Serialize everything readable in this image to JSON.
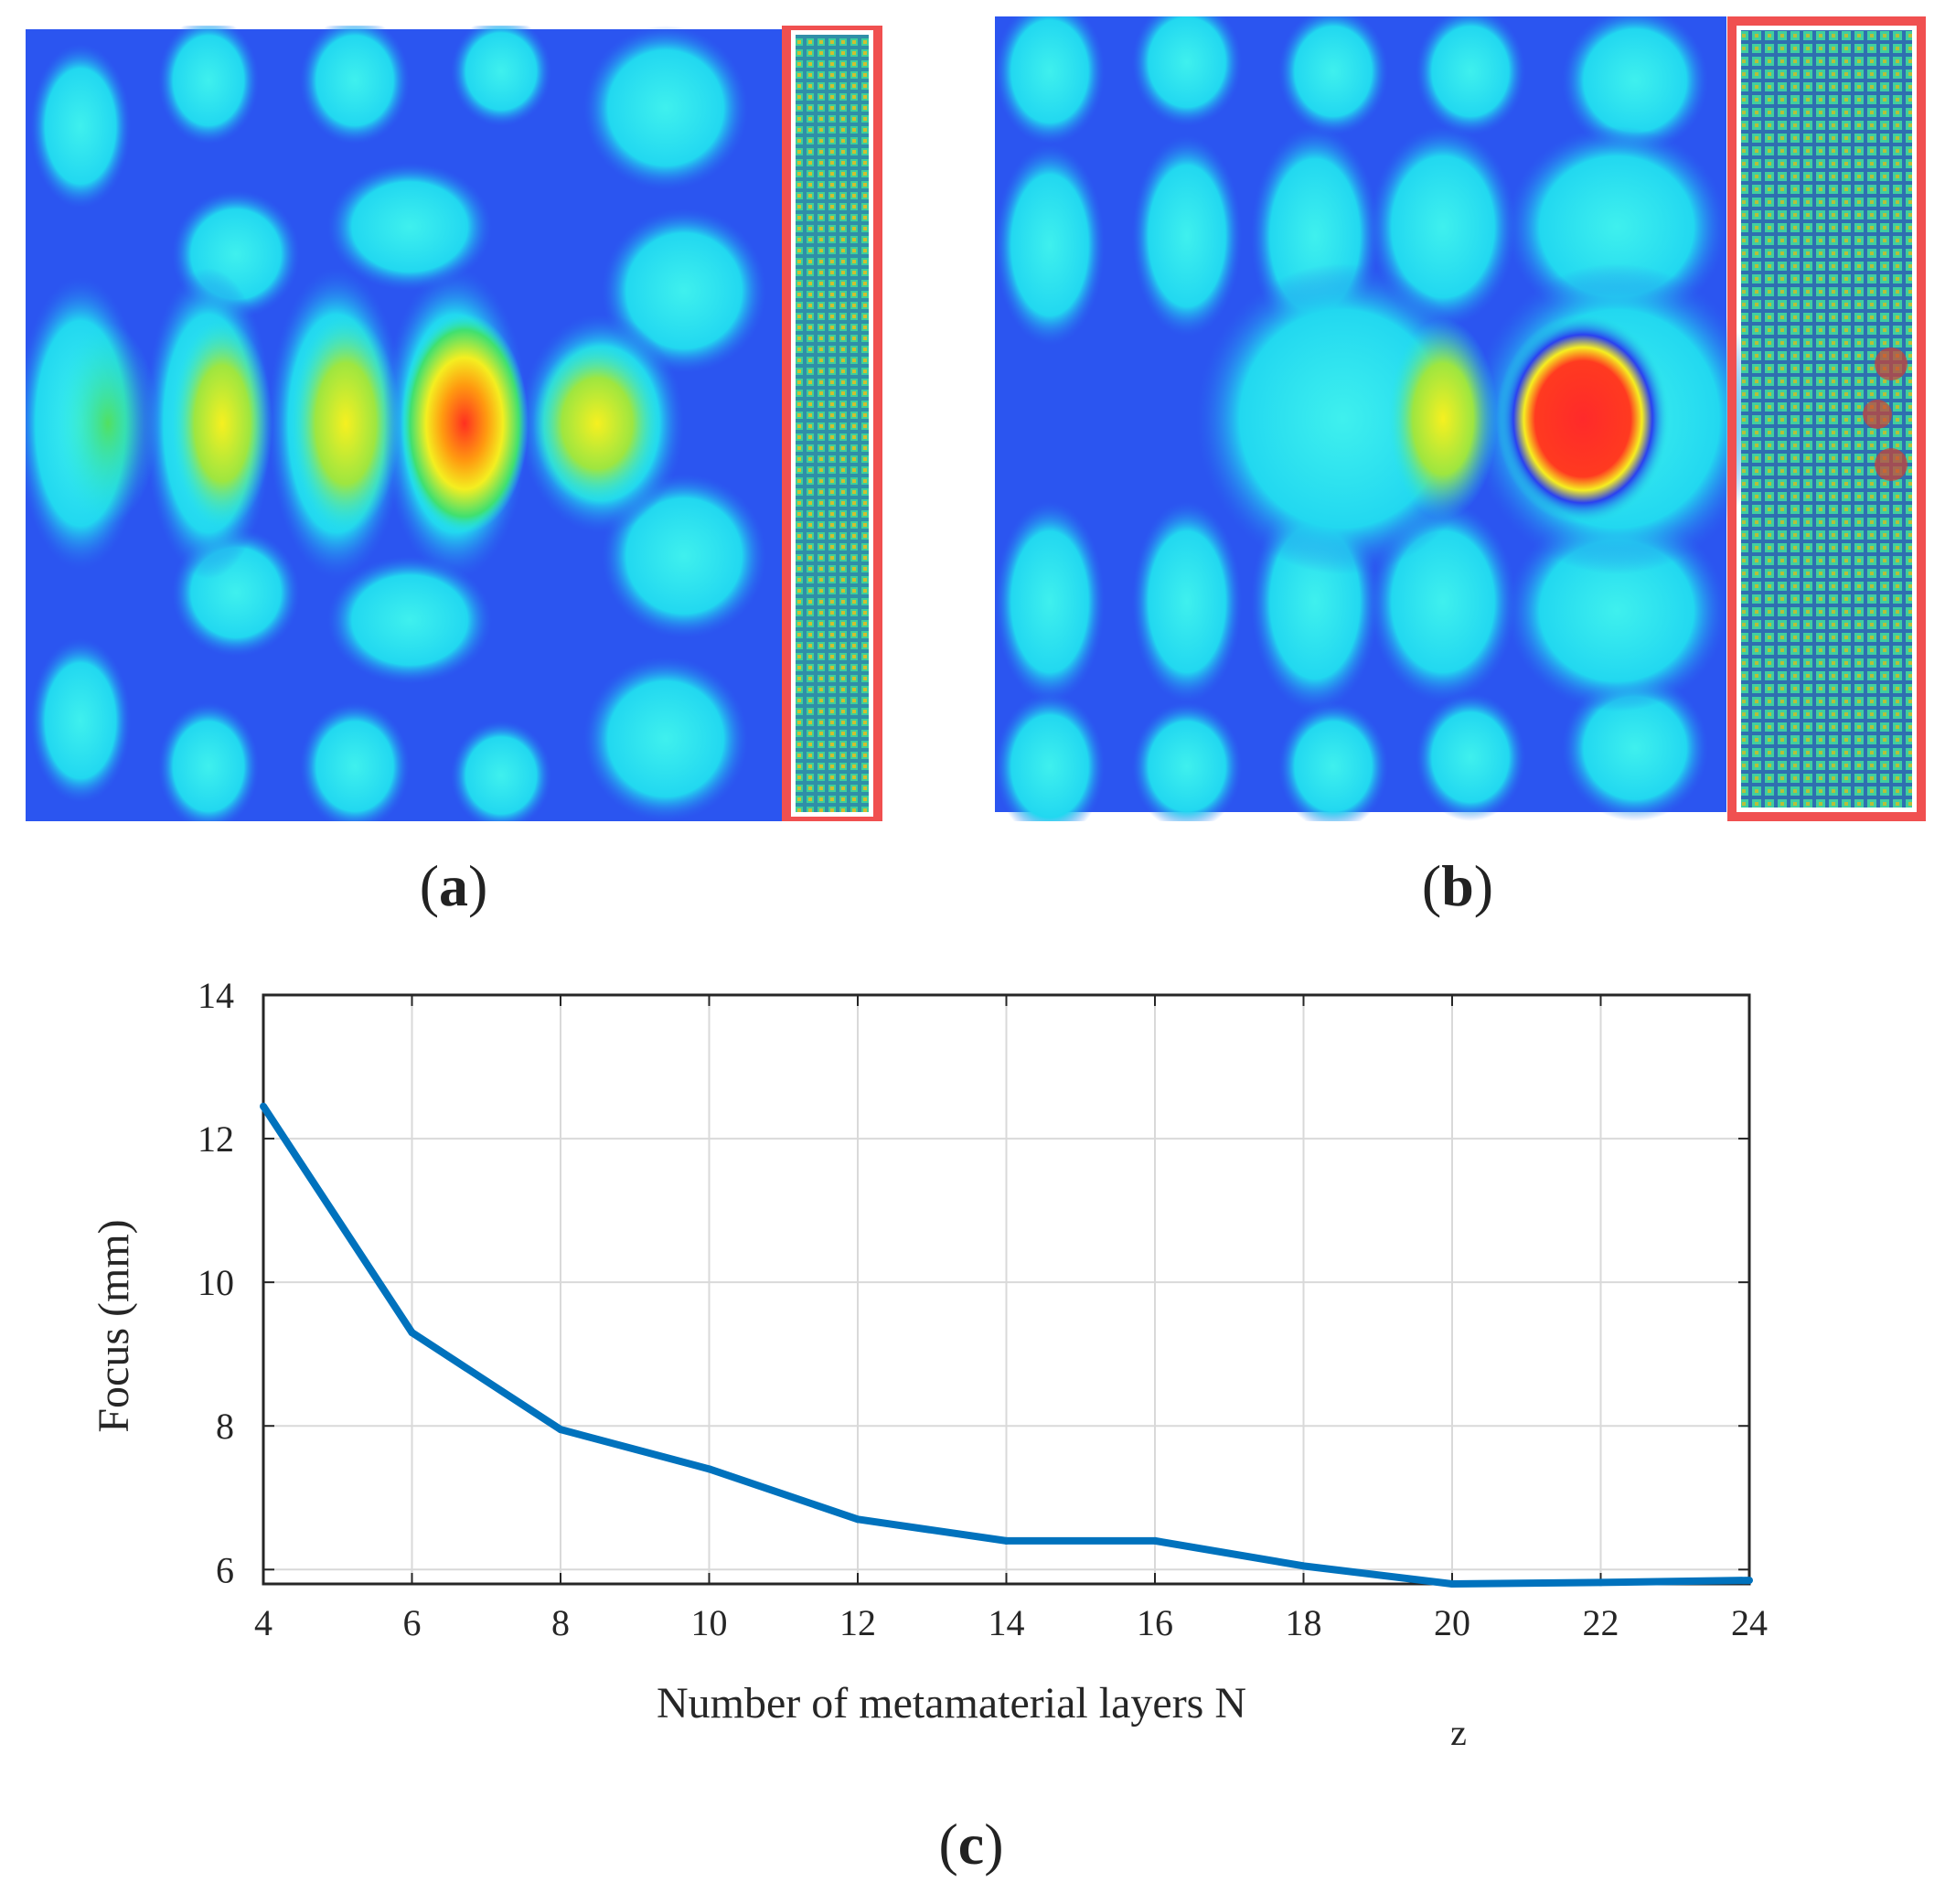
{
  "panels": {
    "a": {
      "label": "a"
    },
    "b": {
      "label": "b"
    },
    "c": {
      "label": "c"
    }
  },
  "colors": {
    "line": "#0072BD",
    "grid": "#d9d9d9",
    "metamaterial_border": "#f05050",
    "field_low": "#2244ee",
    "field_mid": "#22ecec",
    "field_high": "#ff2a2a"
  },
  "chart_data": {
    "type": "line",
    "title": "",
    "xlabel": "Number of metamaterial layers N",
    "xlabel_subscript": "z",
    "ylabel": "Focus (mm)",
    "xlim": [
      4,
      24
    ],
    "ylim": [
      5.8,
      14
    ],
    "xticks": [
      4,
      6,
      8,
      10,
      12,
      14,
      16,
      18,
      20,
      22,
      24
    ],
    "yticks": [
      6,
      8,
      10,
      12,
      14
    ],
    "grid": true,
    "series": [
      {
        "name": "Focus",
        "x": [
          4,
          6,
          8,
          10,
          12,
          14,
          16,
          18,
          20,
          22,
          24
        ],
        "y": [
          12.45,
          9.3,
          7.95,
          7.4,
          6.7,
          6.4,
          6.4,
          6.05,
          5.8,
          5.82,
          5.85
        ]
      }
    ]
  }
}
